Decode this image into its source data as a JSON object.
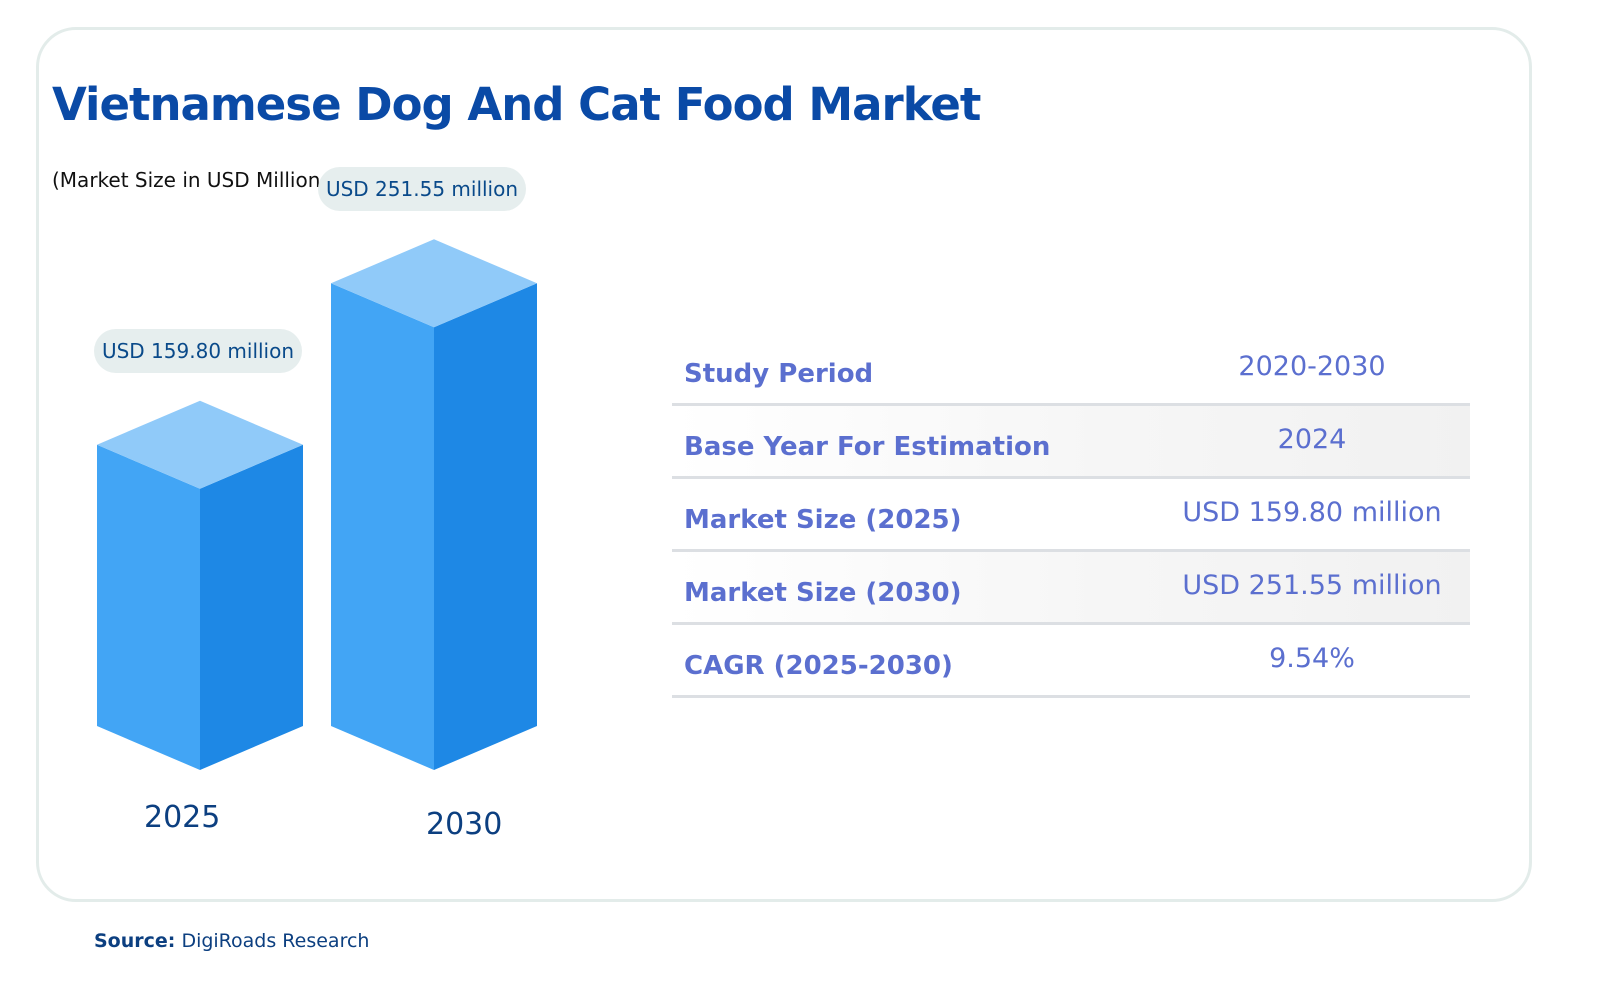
{
  "header": {
    "title": "Vietnamese Dog And Cat Food Market",
    "subtitle": "(Market Size in USD Millions)"
  },
  "chart_data": {
    "type": "bar",
    "categories": [
      "2025",
      "2030"
    ],
    "values": [
      159.8,
      251.55
    ],
    "data_labels": [
      "USD 159.80 million",
      "USD 251.55 million"
    ],
    "title": "Vietnamese Dog And Cat Food Market",
    "subtitle": "(Market Size in USD Millions)",
    "xlabel": "",
    "ylabel": "",
    "grid": false,
    "style": "3d-isometric-columns",
    "colors": {
      "top": "#90caf9",
      "front": "#42a5f5",
      "side": "#1e88e5"
    }
  },
  "table": {
    "rows": [
      {
        "label": "Study Period",
        "value": "2020-2030"
      },
      {
        "label": "Base Year For Estimation",
        "value": "2024"
      },
      {
        "label": "Market Size (2025)",
        "value": "USD 159.80 million"
      },
      {
        "label": "Market Size (2030)",
        "value": "USD 251.55 million"
      },
      {
        "label": "CAGR (2025-2030)",
        "value": "9.54%"
      }
    ]
  },
  "source": {
    "label": "Source:",
    "text": "DigiRoads Research"
  },
  "colors": {
    "title": "#0a4aa6",
    "table_text": "#5b6fcf",
    "card_border": "#e3ecea",
    "pill_bg": "#e6eeee"
  }
}
